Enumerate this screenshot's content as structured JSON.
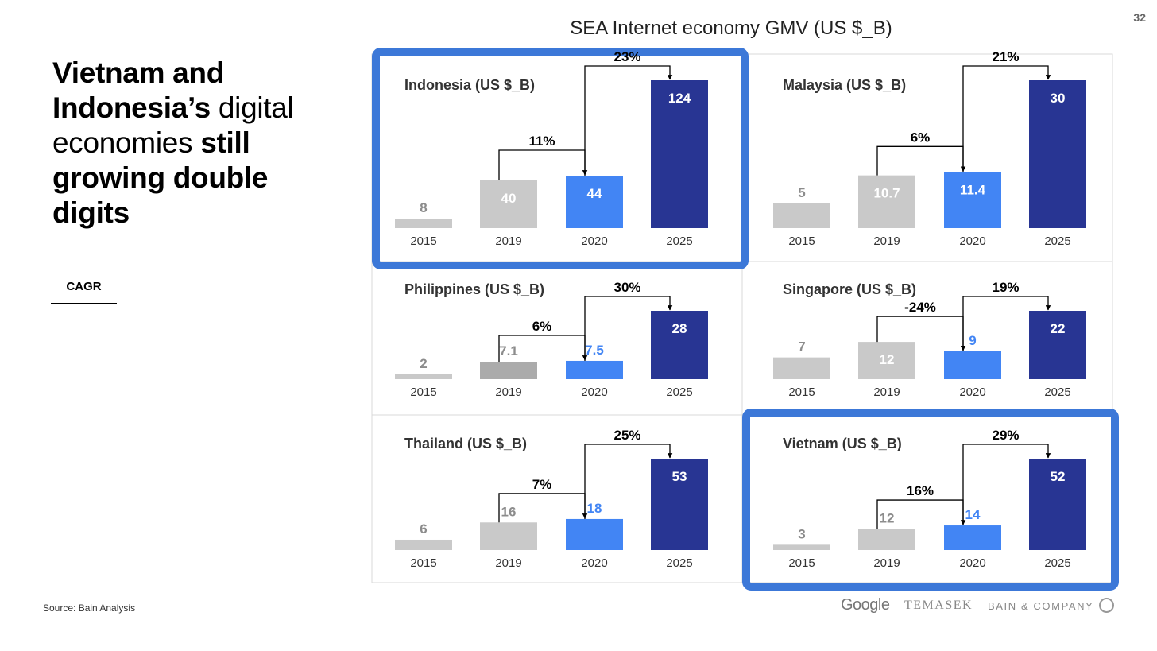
{
  "page": {
    "number": "32"
  },
  "headline": {
    "parts": [
      {
        "text": "Vietnam and Indonesia’s",
        "bold": true
      },
      {
        "text": " digital economies ",
        "bold": false
      },
      {
        "text": "still growing double digits",
        "bold": true
      }
    ]
  },
  "legend": {
    "label": "CAGR"
  },
  "source": "Source: Bain Analysis",
  "figure_title": "SEA Internet economy GMV (US $_B)",
  "logos": {
    "google": "Google",
    "temasek": "TEMASEK",
    "bain": "BAIN & COMPANY"
  },
  "colors": {
    "gray_bar": "#c9c9c9",
    "gray_bar_dark": "#ababab",
    "gray_label": "#8c8c8c",
    "year_2020": "#4285f4",
    "year_2025": "#283593",
    "highlight_border": "#3c78d8",
    "panel_border": "#d9d9d9"
  },
  "chart_data": [
    {
      "type": "bar",
      "title": "Indonesia (US $_B)",
      "highlighted": true,
      "categories": [
        "2015",
        "2019",
        "2020",
        "2025"
      ],
      "values": [
        8,
        40,
        44,
        124
      ],
      "value_labels": [
        "8",
        "40",
        "44",
        "124"
      ],
      "cagr": [
        {
          "from": "2019",
          "to": "2020",
          "label": "11%"
        },
        {
          "from": "2020",
          "to": "2025",
          "label": "23%"
        }
      ]
    },
    {
      "type": "bar",
      "title": "Malaysia (US $_B)",
      "highlighted": false,
      "categories": [
        "2015",
        "2019",
        "2020",
        "2025"
      ],
      "values": [
        5,
        10.7,
        11.4,
        30
      ],
      "value_labels": [
        "5",
        "10.7",
        "11.4",
        "30"
      ],
      "cagr": [
        {
          "from": "2019",
          "to": "2020",
          "label": "6%"
        },
        {
          "from": "2020",
          "to": "2025",
          "label": "21%"
        }
      ]
    },
    {
      "type": "bar",
      "title": "Philippines (US $_B)",
      "highlighted": false,
      "categories": [
        "2015",
        "2019",
        "2020",
        "2025"
      ],
      "values": [
        2,
        7.1,
        7.5,
        28
      ],
      "value_labels": [
        "2",
        "7.1",
        "7.5",
        "28"
      ],
      "cagr": [
        {
          "from": "2019",
          "to": "2020",
          "label": "6%"
        },
        {
          "from": "2020",
          "to": "2025",
          "label": "30%"
        }
      ]
    },
    {
      "type": "bar",
      "title": "Singapore (US $_B)",
      "highlighted": false,
      "categories": [
        "2015",
        "2019",
        "2020",
        "2025"
      ],
      "values": [
        7,
        12,
        9,
        22
      ],
      "value_labels": [
        "7",
        "12",
        "9",
        "22"
      ],
      "cagr": [
        {
          "from": "2019",
          "to": "2020",
          "label": "-24%"
        },
        {
          "from": "2020",
          "to": "2025",
          "label": "19%"
        }
      ]
    },
    {
      "type": "bar",
      "title": "Thailand (US $_B)",
      "highlighted": false,
      "categories": [
        "2015",
        "2019",
        "2020",
        "2025"
      ],
      "values": [
        6,
        16,
        18,
        53
      ],
      "value_labels": [
        "6",
        "16",
        "18",
        "53"
      ],
      "cagr": [
        {
          "from": "2019",
          "to": "2020",
          "label": "7%"
        },
        {
          "from": "2020",
          "to": "2025",
          "label": "25%"
        }
      ]
    },
    {
      "type": "bar",
      "title": "Vietnam (US $_B)",
      "highlighted": true,
      "categories": [
        "2015",
        "2019",
        "2020",
        "2025"
      ],
      "values": [
        3,
        12,
        14,
        52
      ],
      "value_labels": [
        "3",
        "12",
        "14",
        "52"
      ],
      "cagr": [
        {
          "from": "2019",
          "to": "2020",
          "label": "16%"
        },
        {
          "from": "2020",
          "to": "2025",
          "label": "29%"
        }
      ]
    }
  ]
}
